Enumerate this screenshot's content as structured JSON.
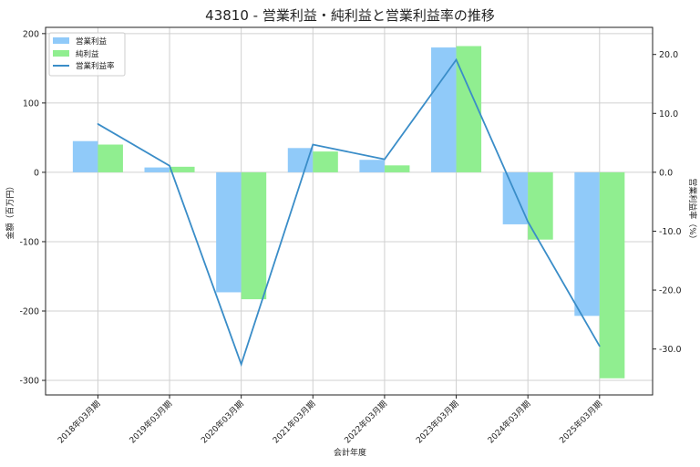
{
  "chart_data": {
    "type": "bar",
    "title": "43810 - 営業利益・純利益と営業利益率の推移",
    "xlabel": "会計年度",
    "ylabel": "金額（百万円）",
    "ylabel_right": "営業利益率（%）",
    "categories": [
      "2018年03月期",
      "2019年03月期",
      "2020年03月期",
      "2021年03月期",
      "2022年03月期",
      "2023年03月期",
      "2024年03月期",
      "2025年03月期"
    ],
    "series": [
      {
        "name": "営業利益",
        "type": "bar",
        "axis": "left",
        "color": "#90caf9",
        "values": [
          45,
          7,
          -173,
          35,
          18,
          180,
          -75,
          -207
        ]
      },
      {
        "name": "純利益",
        "type": "bar",
        "axis": "left",
        "color": "#90ee90",
        "values": [
          40,
          8,
          -183,
          30,
          10,
          182,
          -97,
          -297
        ]
      },
      {
        "name": "営業利益率",
        "type": "line",
        "axis": "right",
        "color": "#3a8dc8",
        "values": [
          8.2,
          1.1,
          -32.6,
          4.7,
          2.2,
          19.1,
          -8.4,
          -29.5
        ]
      }
    ],
    "ylim": [
      -321,
      209
    ],
    "ylim_right": [
      -37.8,
      24.6
    ],
    "yticks": [
      -300,
      -200,
      -100,
      0,
      100,
      200
    ],
    "yticks_right": [
      "-30.0",
      "-20.0",
      "-10.0",
      "0.0",
      "10.0",
      "20.0"
    ],
    "yticks_right_values": [
      -30,
      -20,
      -10,
      0,
      10,
      20
    ],
    "grid": true,
    "legend": "top-left"
  }
}
